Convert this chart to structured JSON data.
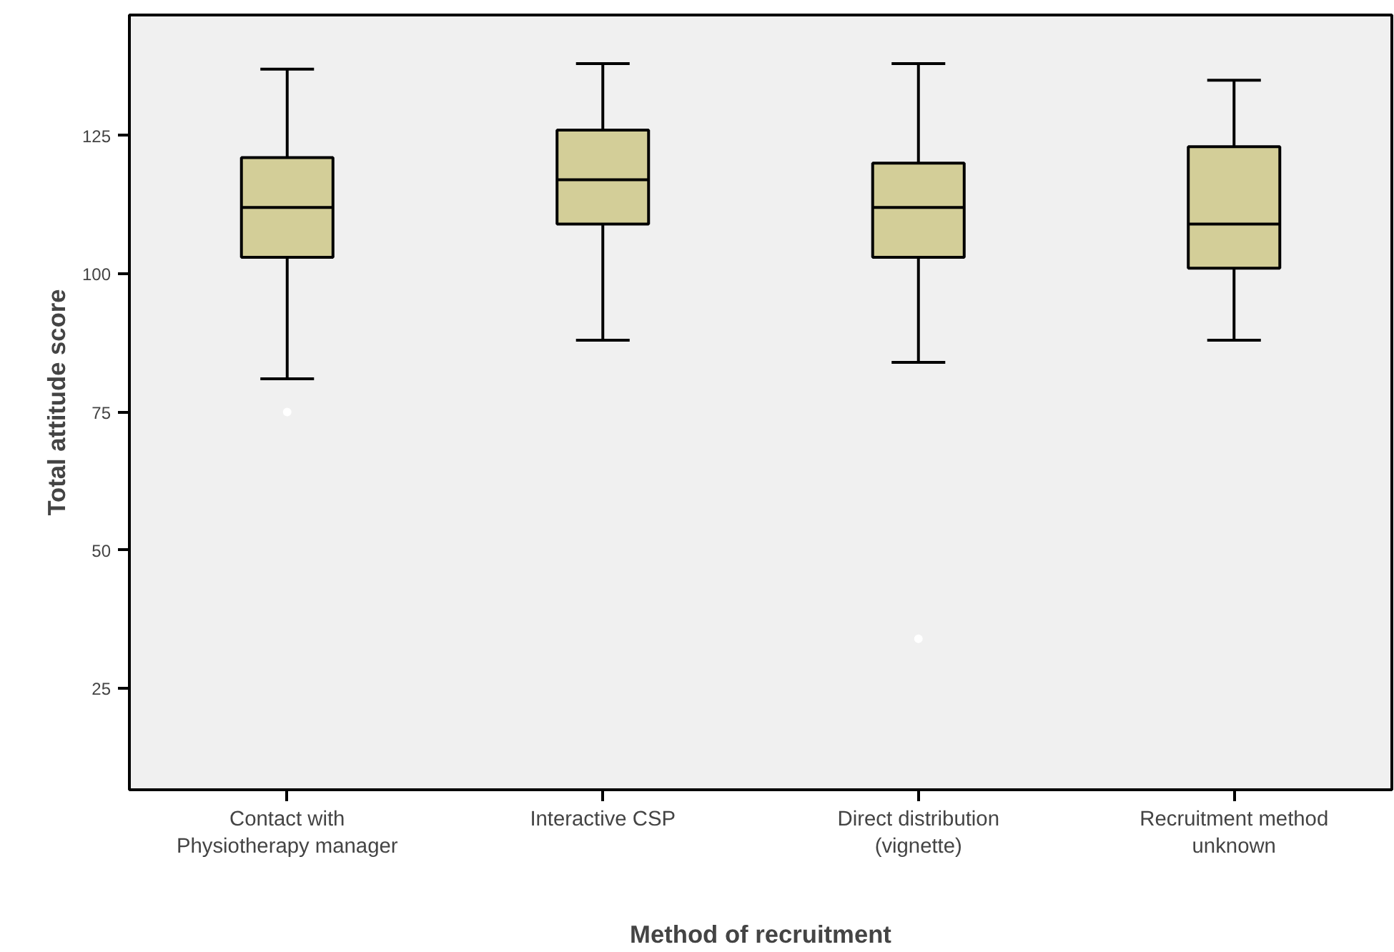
{
  "chart_data": {
    "type": "box",
    "xlabel": "Method of recruitment",
    "ylabel": "Total attitude score",
    "categories": [
      "Contact with\nPhysiotherapy manager",
      "Interactive CSP",
      "Direct distribution\n(vignette)",
      "Recruitment method\nunknown"
    ],
    "color": "#d3ce98",
    "boxes": [
      {
        "low": 81,
        "q1": 103,
        "median": 112,
        "q3": 121,
        "high": 137,
        "outliers": [
          75
        ]
      },
      {
        "low": 88,
        "q1": 109,
        "median": 117,
        "q3": 126,
        "high": 138
      },
      {
        "low": 84,
        "q1": 103,
        "median": 112,
        "q3": 120,
        "high": 138,
        "outliers": [
          34
        ]
      },
      {
        "low": 88,
        "q1": 101,
        "median": 109,
        "q3": 123,
        "high": 135
      }
    ],
    "ylim": [
      6.7,
      146.8
    ],
    "yticks": [
      25,
      50,
      75,
      100,
      125
    ],
    "grid": false
  }
}
